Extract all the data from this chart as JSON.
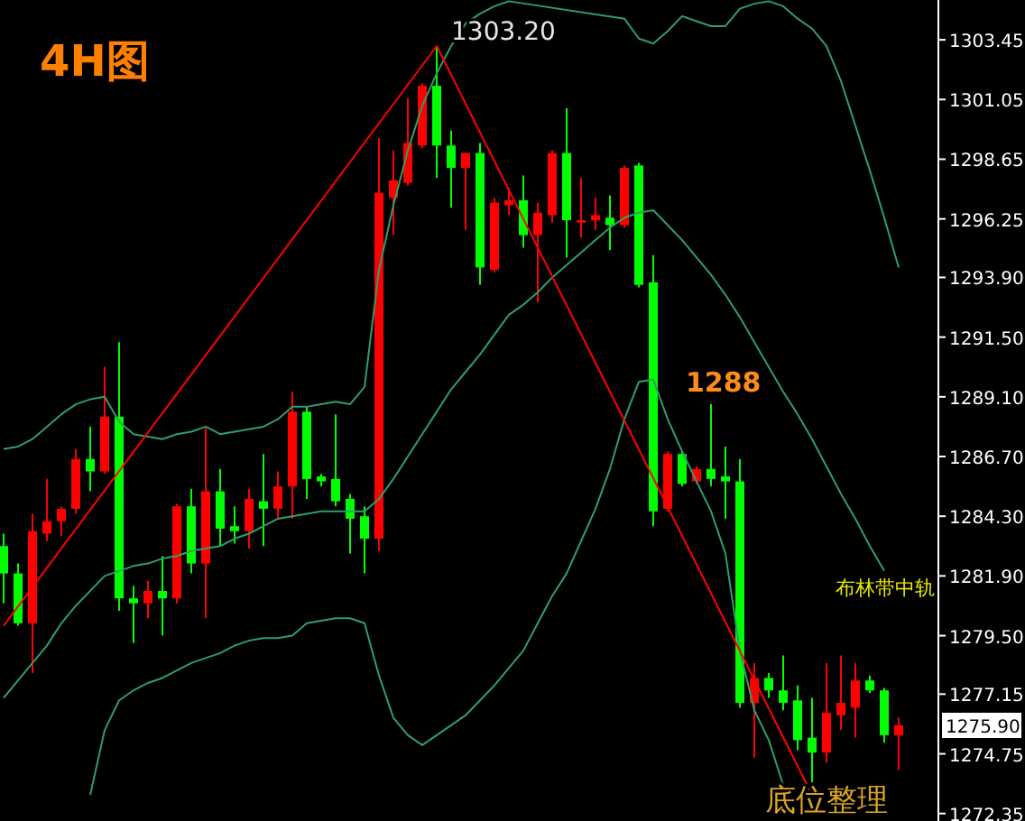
{
  "chart_data": {
    "type": "candlestick",
    "title": "4H图",
    "categories": [
      null,
      null,
      null,
      null,
      null,
      null,
      null,
      null,
      null,
      null,
      null,
      null,
      null,
      null,
      null,
      null,
      null,
      null,
      null,
      null,
      null,
      null,
      null,
      null,
      null,
      null,
      null,
      null,
      null,
      null,
      null,
      null,
      null,
      null,
      null,
      null,
      null,
      null,
      null,
      null,
      null,
      null,
      null,
      null,
      null,
      null,
      null,
      null,
      null,
      null,
      null,
      null,
      null,
      null,
      null,
      null,
      null,
      null,
      null,
      null,
      null,
      null,
      null
    ],
    "ohlc": [
      [
        1283.1,
        1283.6,
        1280.8,
        1282.0
      ],
      [
        1282.0,
        1282.4,
        1279.9,
        1280.0
      ],
      [
        1280.0,
        1284.4,
        1278.0,
        1283.7
      ],
      [
        1283.6,
        1285.8,
        1283.3,
        1284.1
      ],
      [
        1284.1,
        1284.7,
        1283.5,
        1284.6
      ],
      [
        1284.6,
        1287.0,
        1284.4,
        1286.6
      ],
      [
        1286.6,
        1287.9,
        1285.3,
        1286.1
      ],
      [
        1286.1,
        1290.3,
        1286.0,
        1288.3
      ],
      [
        1288.3,
        1291.3,
        1280.5,
        1281.0
      ],
      [
        1281.0,
        1281.5,
        1279.2,
        1280.8
      ],
      [
        1280.8,
        1281.7,
        1280.2,
        1281.3
      ],
      [
        1281.3,
        1282.7,
        1279.5,
        1281.0
      ],
      [
        1281.0,
        1284.8,
        1280.8,
        1284.7
      ],
      [
        1284.7,
        1285.4,
        1282.0,
        1282.4
      ],
      [
        1282.4,
        1287.9,
        1280.2,
        1285.3
      ],
      [
        1285.3,
        1286.2,
        1283.1,
        1283.8
      ],
      [
        1283.9,
        1284.7,
        1283.2,
        1283.7
      ],
      [
        1283.7,
        1285.4,
        1283.0,
        1285.0
      ],
      [
        1284.9,
        1286.8,
        1283.1,
        1284.6
      ],
      [
        1284.6,
        1286.1,
        1284.2,
        1285.5
      ],
      [
        1285.5,
        1289.3,
        1284.2,
        1288.5
      ],
      [
        1288.5,
        1288.7,
        1285.0,
        1285.8
      ],
      [
        1285.9,
        1286.0,
        1285.5,
        1285.7
      ],
      [
        1285.8,
        1288.4,
        1284.7,
        1284.9
      ],
      [
        1285.0,
        1285.2,
        1282.8,
        1284.2
      ],
      [
        1284.3,
        1284.7,
        1282.0,
        1283.4
      ],
      [
        1283.4,
        1299.5,
        1282.9,
        1297.3
      ],
      [
        1297.1,
        1299.0,
        1295.6,
        1297.8
      ],
      [
        1297.7,
        1301.1,
        1297.6,
        1299.3
      ],
      [
        1299.2,
        1301.7,
        1299.1,
        1301.6
      ],
      [
        1301.6,
        1303.2,
        1297.9,
        1299.2
      ],
      [
        1299.2,
        1299.8,
        1296.7,
        1298.3
      ],
      [
        1298.3,
        1298.9,
        1295.8,
        1298.9
      ],
      [
        1298.9,
        1299.3,
        1293.6,
        1294.3
      ],
      [
        1294.2,
        1297.1,
        1294.1,
        1296.9
      ],
      [
        1296.8,
        1297.5,
        1296.4,
        1297.0
      ],
      [
        1297.0,
        1298.0,
        1295.1,
        1295.6
      ],
      [
        1295.6,
        1296.9,
        1292.9,
        1296.5
      ],
      [
        1296.4,
        1299.0,
        1296.1,
        1298.9
      ],
      [
        1298.9,
        1300.7,
        1294.7,
        1296.2
      ],
      [
        1296.1,
        1297.9,
        1295.5,
        1296.2
      ],
      [
        1296.2,
        1297.1,
        1295.8,
        1296.4
      ],
      [
        1296.3,
        1297.2,
        1295.0,
        1296.0
      ],
      [
        1296.0,
        1298.4,
        1295.9,
        1298.3
      ],
      [
        1298.4,
        1298.5,
        1293.5,
        1293.6
      ],
      [
        1293.7,
        1294.8,
        1283.9,
        1284.5
      ],
      [
        1284.6,
        1286.9,
        1284.5,
        1286.8
      ],
      [
        1286.8,
        1286.9,
        1285.5,
        1285.6
      ],
      [
        1285.7,
        1286.3,
        1285.6,
        1286.2
      ],
      [
        1286.2,
        1288.8,
        1285.5,
        1285.8
      ],
      [
        1285.9,
        1287.1,
        1284.2,
        1285.7
      ],
      [
        1285.7,
        1286.6,
        1276.6,
        1276.8
      ],
      [
        1276.8,
        1278.4,
        1274.6,
        1277.8
      ],
      [
        1277.8,
        1278.0,
        1277.0,
        1277.3
      ],
      [
        1277.3,
        1278.7,
        1276.5,
        1276.8
      ],
      [
        1276.9,
        1277.5,
        1274.9,
        1275.3
      ],
      [
        1275.4,
        1277.0,
        1273.6,
        1274.8
      ],
      [
        1274.8,
        1278.4,
        1274.4,
        1276.4
      ],
      [
        1276.3,
        1278.7,
        1275.7,
        1276.8
      ],
      [
        1276.6,
        1278.4,
        1275.4,
        1277.7
      ],
      [
        1277.7,
        1277.9,
        1277.2,
        1277.3
      ],
      [
        1277.3,
        1277.4,
        1275.2,
        1275.5
      ],
      [
        1275.5,
        1276.2,
        1274.1,
        1275.9
      ]
    ],
    "colors": [
      "#00ff00",
      "#00ff00",
      "#ff0000",
      "#ff0000",
      "#ff0000",
      "#ff0000",
      "#00ff00",
      "#ff0000",
      "#00ff00",
      "#00ff00",
      "#ff0000",
      "#00ff00",
      "#ff0000",
      "#00ff00",
      "#ff0000",
      "#00ff00",
      "#00ff00",
      "#ff0000",
      "#00ff00",
      "#ff0000",
      "#ff0000",
      "#00ff00",
      "#00ff00",
      "#00ff00",
      "#00ff00",
      "#00ff00",
      "#ff0000",
      "#ff0000",
      "#ff0000",
      "#ff0000",
      "#00ff00",
      "#00ff00",
      "#ff0000",
      "#00ff00",
      "#ff0000",
      "#ff0000",
      "#00ff00",
      "#ff0000",
      "#ff0000",
      "#00ff00",
      "#ff0000",
      "#ff0000",
      "#00ff00",
      "#ff0000",
      "#00ff00",
      "#00ff00",
      "#ff0000",
      "#00ff00",
      "#ff0000",
      "#00ff00",
      "#00ff00",
      "#00ff00",
      "#ff0000",
      "#00ff00",
      "#00ff00",
      "#00ff00",
      "#00ff00",
      "#ff0000",
      "#ff0000",
      "#ff0000",
      "#00ff00",
      "#00ff00",
      "#ff0000"
    ],
    "series": [
      {
        "type": "line",
        "color": "#2e9e6a",
        "values": [
          1287.0,
          1287.1,
          1287.4,
          1287.9,
          1288.4,
          1288.8,
          1289.0,
          1289.1,
          1288.1,
          1287.6,
          1287.5,
          1287.4,
          1287.6,
          1287.7,
          1287.9,
          1287.6,
          1287.7,
          1287.8,
          1287.9,
          1288.2,
          1288.7,
          1288.7,
          1288.8,
          1288.9,
          1288.8,
          1289.5,
          1294.2,
          1296.8,
          1299.0,
          1300.8,
          1302.1,
          1303.2,
          1304.1,
          1304.5,
          1304.8,
          1305.0,
          null,
          null,
          null,
          null,
          null,
          null,
          null,
          1304.3,
          1303.5,
          1303.3,
          1303.8,
          1304.4,
          1304.2,
          1304.0,
          1304.0,
          1304.7,
          1304.9,
          1305.0,
          1304.8,
          1304.3,
          1303.9,
          1303.2,
          1301.8,
          1300.0,
          1298.2,
          1296.3,
          1294.3
        ]
      },
      {
        "type": "line",
        "name": "布林带中轨",
        "color": "#2e9e6a",
        "values": [
          1277.0,
          1277.7,
          1278.4,
          1279.1,
          1280.0,
          1280.7,
          1281.3,
          1281.9,
          1282.1,
          1282.3,
          1282.4,
          1282.6,
          1282.7,
          1282.9,
          1283.0,
          1283.1,
          1283.4,
          1283.6,
          1283.9,
          1284.2,
          1284.3,
          1284.4,
          1284.5,
          1284.5,
          1284.5,
          1284.5,
          1285.0,
          1285.8,
          1286.7,
          1287.6,
          1288.5,
          1289.4,
          1290.1,
          1290.8,
          1291.6,
          1292.4,
          1292.8,
          1293.3,
          1293.9,
          1294.4,
          1294.9,
          1295.4,
          1295.9,
          1296.3,
          1296.5,
          1296.6,
          1296.0,
          1295.4,
          1294.7,
          1294.0,
          1293.2,
          1292.3,
          1291.3,
          1290.3,
          1289.3,
          1288.4,
          1287.4,
          1286.3,
          1285.2,
          1284.2,
          1283.1,
          1282.1,
          null
        ]
      },
      {
        "type": "line",
        "color": "#2e9e6a",
        "values": [
          null,
          null,
          null,
          null,
          null,
          null,
          1273.1,
          1275.7,
          1276.9,
          1277.3,
          1277.6,
          1277.8,
          1278.1,
          1278.4,
          1278.6,
          1278.8,
          1279.1,
          1279.3,
          1279.4,
          1279.4,
          1279.5,
          1280.0,
          1280.1,
          1280.2,
          1280.2,
          1280.0,
          1277.9,
          1276.2,
          1275.5,
          1275.1,
          1275.5,
          1275.9,
          1276.3,
          1276.9,
          1277.5,
          1278.2,
          1278.9,
          1280.0,
          1281.1,
          1282.0,
          1283.3,
          1284.6,
          1286.2,
          1288.2,
          1289.7,
          1289.8,
          1288.2,
          1286.9,
          1285.7,
          1284.5,
          1282.8,
          1278.9,
          1276.5,
          1275.3,
          1273.5,
          null,
          null,
          null,
          null,
          null,
          null,
          null,
          null
        ]
      },
      {
        "type": "line",
        "color": "#ff0000",
        "values": [
          1279.9,
          null,
          null,
          null,
          null,
          null,
          null,
          null,
          null,
          null,
          null,
          null,
          null,
          null,
          null,
          null,
          null,
          null,
          null,
          null,
          null,
          null,
          null,
          null,
          null,
          null,
          null,
          null,
          null,
          null,
          1303.2,
          null,
          null,
          null,
          null,
          null,
          null,
          null,
          null,
          null,
          null,
          null,
          null,
          null,
          null,
          null,
          null,
          null,
          null,
          null,
          null,
          null,
          null,
          null,
          null,
          null,
          1273.1,
          null,
          null,
          null,
          null,
          null,
          null
        ]
      }
    ],
    "ylim": [
      1272.05,
      1305.05
    ],
    "yticks": [
      1303.45,
      1301.05,
      1298.65,
      1296.25,
      {
        "value": 1293.9,
        "label": "1293.90"
      },
      {
        "value": 1291.5,
        "label": "1291.50"
      },
      {
        "value": 1289.1,
        "label": "1289.10"
      },
      {
        "value": 1286.7,
        "label": "1286.70"
      },
      {
        "value": 1284.3,
        "label": "1284.30"
      },
      {
        "value": 1281.9,
        "label": "1281.90"
      },
      {
        "value": 1279.5,
        "label": "1279.50"
      },
      1277.15,
      1274.75,
      1272.35
    ],
    "annotations": [
      "1303.20",
      "1288",
      "底位整理",
      "1275.90"
    ]
  }
}
